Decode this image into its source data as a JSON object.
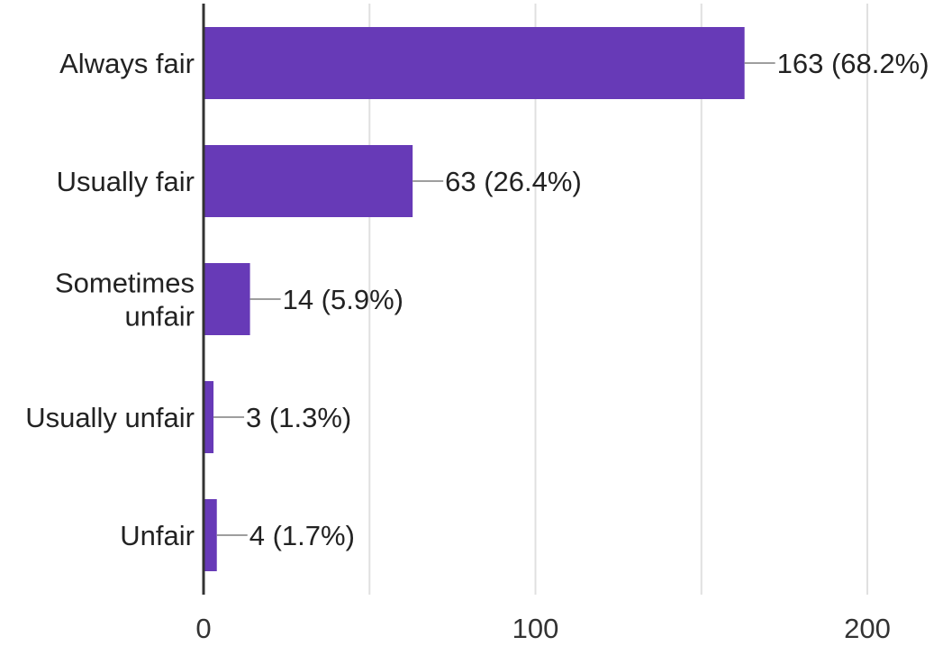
{
  "chart_data": {
    "type": "bar",
    "orientation": "horizontal",
    "categories": [
      [
        "Always fair"
      ],
      [
        "Usually fair"
      ],
      [
        "Sometimes",
        "unfair"
      ],
      [
        "Usually unfair"
      ],
      [
        "Unfair"
      ]
    ],
    "values": [
      163,
      63,
      14,
      3,
      4
    ],
    "data_labels": [
      "163 (68.2%)",
      "63 (26.4%)",
      "14 (5.9%)",
      "3 (1.3%)",
      "4 (1.7%)"
    ],
    "xlim": [
      0,
      200
    ],
    "x_ticks": [
      0,
      100,
      200
    ],
    "x_tick_labels": [
      "0",
      "100",
      "200"
    ],
    "gridlines": [
      0,
      50,
      100,
      150,
      200
    ],
    "grid": true,
    "bar_color": "#673ab7",
    "title": "",
    "xlabel": "",
    "ylabel": ""
  }
}
